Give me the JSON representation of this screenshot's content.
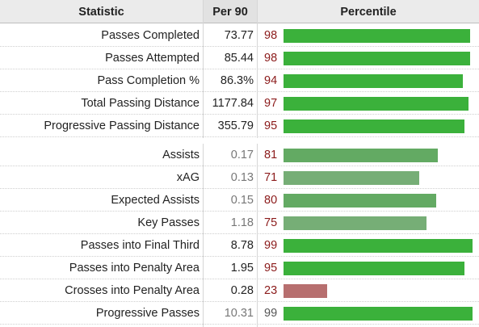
{
  "headers": {
    "statistic": "Statistic",
    "per90": "Per 90",
    "percentile": "Percentile"
  },
  "colors": {
    "high": "#3bb13b",
    "mid_high": "#63aa63",
    "mid": "#76ae76",
    "low": "#b76f6f",
    "value_primary": "#222222",
    "value_secondary": "#777777"
  },
  "sections": [
    {
      "rows": [
        {
          "label": "Passes Completed",
          "per90": "73.77",
          "percentile": 98
        },
        {
          "label": "Passes Attempted",
          "per90": "85.44",
          "percentile": 98
        },
        {
          "label": "Pass Completion %",
          "per90": "86.3%",
          "percentile": 94
        },
        {
          "label": "Total Passing Distance",
          "per90": "1177.84",
          "percentile": 97
        },
        {
          "label": "Progressive Passing Distance",
          "per90": "355.79",
          "percentile": 95
        }
      ]
    },
    {
      "rows": [
        {
          "label": "Assists",
          "per90": "0.17",
          "percentile": 81
        },
        {
          "label": "xAG",
          "per90": "0.13",
          "percentile": 71
        },
        {
          "label": "Expected Assists",
          "per90": "0.15",
          "percentile": 80
        },
        {
          "label": "Key Passes",
          "per90": "1.18",
          "percentile": 75
        },
        {
          "label": "Passes into Final Third",
          "per90": "8.78",
          "percentile": 99
        },
        {
          "label": "Passes into Penalty Area",
          "per90": "1.95",
          "percentile": 95
        },
        {
          "label": "Crosses into Penalty Area",
          "per90": "0.28",
          "percentile": 23
        },
        {
          "label": "Progressive Passes",
          "per90": "10.31",
          "percentile": 99
        }
      ]
    }
  ]
}
